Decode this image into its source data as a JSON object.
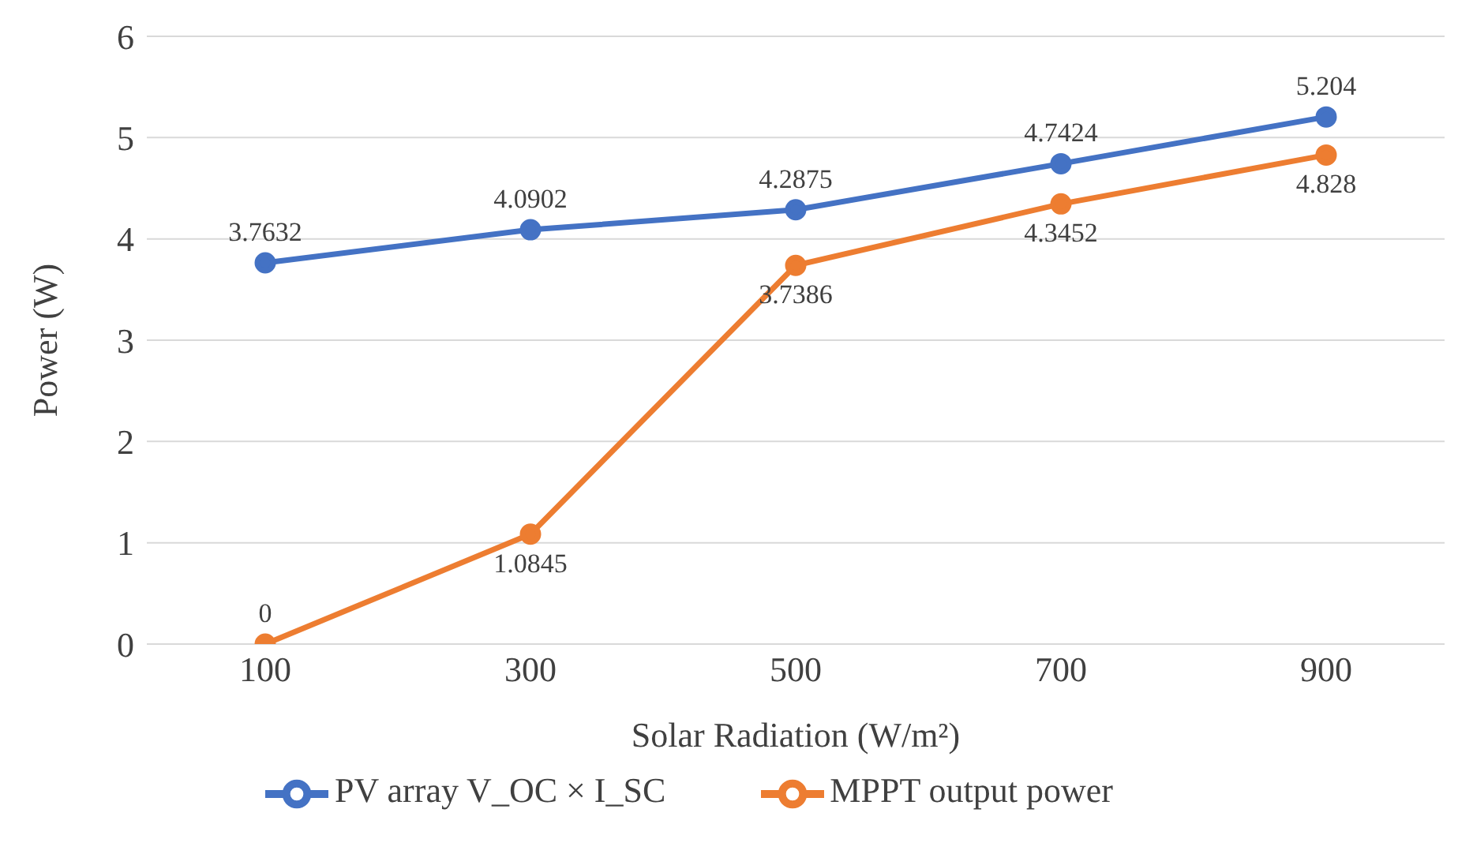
{
  "chart_data": {
    "type": "line",
    "xlabel": "Solar Radiation (W/m²)",
    "ylabel": "Power (W)",
    "categories": [
      "100",
      "300",
      "500",
      "700",
      "900"
    ],
    "series": [
      {
        "name": "PV array V_OC × I_SC",
        "color": "#4472c4",
        "values": [
          3.7632,
          4.0902,
          4.2875,
          4.7424,
          5.204
        ]
      },
      {
        "name": "MPPT output power",
        "color": "#ed7d31",
        "values": [
          0,
          1.0845,
          3.7386,
          4.3452,
          4.828
        ]
      }
    ],
    "ylim": [
      0,
      6
    ],
    "yticks": [
      0,
      1,
      2,
      3,
      4,
      5,
      6
    ],
    "grid": "y",
    "legend": "bottom",
    "marker": "circle",
    "line_style": "solid",
    "data_labels": true
  }
}
